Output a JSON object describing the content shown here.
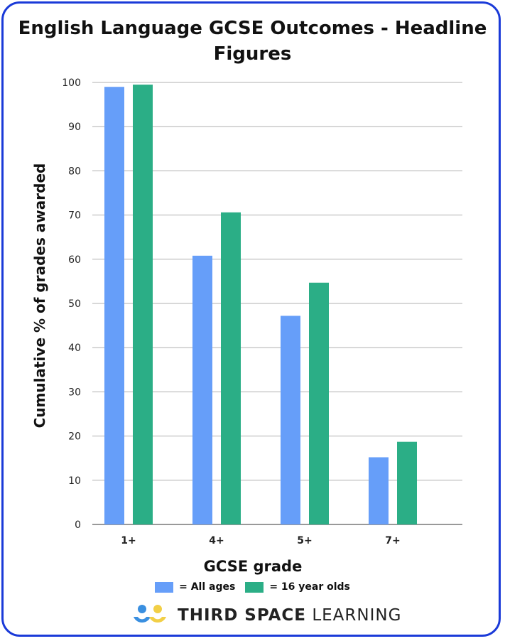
{
  "chart_data": {
    "type": "bar",
    "title": "English Language GCSE Outcomes - Headline Figures",
    "title_lines": [
      "English Language GCSE Outcomes - Headline",
      "Figures"
    ],
    "xlabel": "GCSE grade",
    "ylabel": "Cumulative % of grades awarded",
    "categories": [
      "1+",
      "4+",
      "5+",
      "7+"
    ],
    "series": [
      {
        "name": "All ages",
        "legend_label": "= All ages",
        "color": "#669ef9",
        "values": [
          99.0,
          60.8,
          47.2,
          15.2
        ]
      },
      {
        "name": "16 year olds",
        "legend_label": "= 16 year olds",
        "color": "#2bae86",
        "values": [
          99.5,
          70.6,
          54.7,
          18.7
        ]
      }
    ],
    "ylim": [
      0,
      100
    ],
    "yticks": [
      0,
      10,
      20,
      30,
      40,
      50,
      60,
      70,
      80,
      90,
      100
    ],
    "grid": true,
    "legend_placement": "bottom"
  },
  "branding": {
    "logo_bold": "THIRD SPACE",
    "logo_light": "LEARNING"
  }
}
